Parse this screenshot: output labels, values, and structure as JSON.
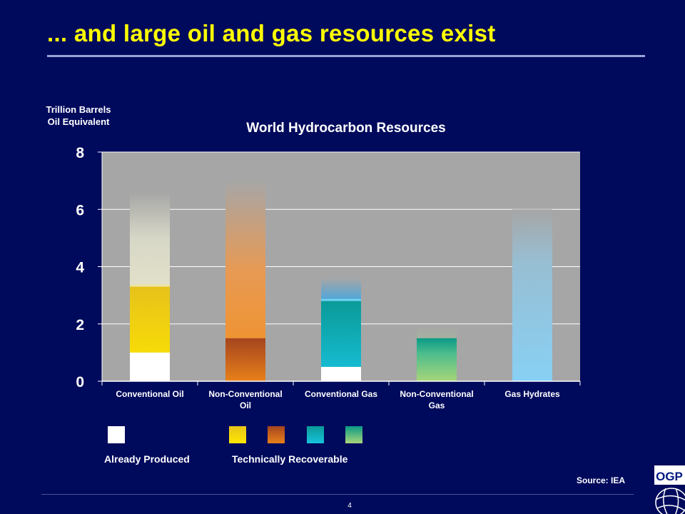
{
  "slide": {
    "title": "... and large oil and gas resources exist",
    "source": "Source: IEA",
    "page_number": "4",
    "logo_text": "OGP"
  },
  "colors": {
    "background": "#000a5c",
    "title": "#ffff00",
    "plot_area": "#a6a6a6",
    "already_produced": "#ffffff",
    "conventional_oil": "#ffe100",
    "non_conventional_oil": "#e8761c",
    "conventional_gas": "#14bcd8",
    "non_conventional_gas": "#9dcf7a",
    "gas_hydrates": "#86cdf0"
  },
  "legend": {
    "already_produced": "Already Produced",
    "technically_recoverable": "Technically Recoverable"
  },
  "chart_data": {
    "type": "bar",
    "title": "World Hydrocarbon Resources",
    "ylabel": "Trillion Barrels Oil Equivalent",
    "ylim": [
      0,
      8
    ],
    "yticks": [
      0,
      2,
      4,
      6,
      8
    ],
    "categories": [
      [
        "Conventional Oil"
      ],
      [
        "Non-Conventional",
        "Oil"
      ],
      [
        "Conventional Gas"
      ],
      [
        "Non-Conventional",
        "Gas"
      ],
      [
        "Gas Hydrates"
      ]
    ],
    "bars": [
      {
        "key": "conventional_oil",
        "already_produced": 1.0,
        "technically_recoverable_top": 3.3,
        "total_resources": 6.6
      },
      {
        "key": "non_conventional_oil",
        "already_produced": 0.0,
        "technically_recoverable_top": 1.5,
        "total_resources": 7.0
      },
      {
        "key": "conventional_gas",
        "already_produced": 0.5,
        "technically_recoverable_top": 2.8,
        "total_resources": 3.6
      },
      {
        "key": "non_conventional_gas",
        "already_produced": 0.0,
        "technically_recoverable_top": 1.5,
        "total_resources": 1.95
      },
      {
        "key": "gas_hydrates",
        "already_produced": 0.0,
        "technically_recoverable_top": 0.0,
        "total_resources": 6.0
      }
    ],
    "grid": true,
    "legend_position": "bottom-left"
  }
}
